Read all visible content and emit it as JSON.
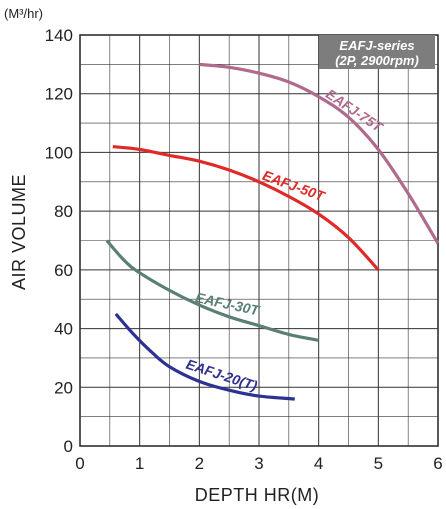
{
  "chart_data": {
    "type": "line",
    "title": "",
    "subtitle": "",
    "badge_lines": [
      "EAFJ-series",
      "(2P, 2900rpm)"
    ],
    "ylabel": "AIR VOLUME",
    "yunit": "(M³/hr)",
    "xlabel": "DEPTH HR(M)",
    "xlim": [
      0,
      6
    ],
    "ylim": [
      0,
      140
    ],
    "x_ticks": [
      0,
      1,
      2,
      3,
      4,
      5,
      6
    ],
    "y_ticks": [
      0,
      20,
      40,
      60,
      80,
      100,
      120,
      140
    ],
    "grid": true,
    "series": [
      {
        "name": "EAFJ-75T",
        "color": "#b06a8c",
        "x": [
          2.0,
          2.5,
          3.0,
          3.5,
          4.0,
          4.5,
          5.0,
          5.5,
          6.0
        ],
        "y": [
          130,
          129,
          127,
          124,
          119,
          112,
          101,
          86,
          69
        ]
      },
      {
        "name": "EAFJ-50T",
        "color": "#e02a2a",
        "x": [
          0.55,
          1.0,
          1.5,
          2.0,
          2.5,
          3.0,
          3.5,
          4.0,
          4.5,
          5.0
        ],
        "y": [
          102,
          101,
          99,
          97,
          94,
          90,
          85,
          79,
          71,
          60
        ]
      },
      {
        "name": "EAFJ-30T",
        "color": "#5a7f76",
        "x": [
          0.45,
          0.75,
          1.0,
          1.5,
          2.0,
          2.5,
          3.0,
          3.5,
          4.0
        ],
        "y": [
          70,
          63,
          59,
          53,
          48,
          44,
          41,
          38,
          36
        ]
      },
      {
        "name": "EAFJ-20(T)",
        "color": "#2e3192",
        "x": [
          0.6,
          0.9,
          1.2,
          1.5,
          2.0,
          2.5,
          3.0,
          3.6
        ],
        "y": [
          45,
          38,
          32,
          27,
          22,
          19,
          17,
          16
        ]
      }
    ]
  }
}
